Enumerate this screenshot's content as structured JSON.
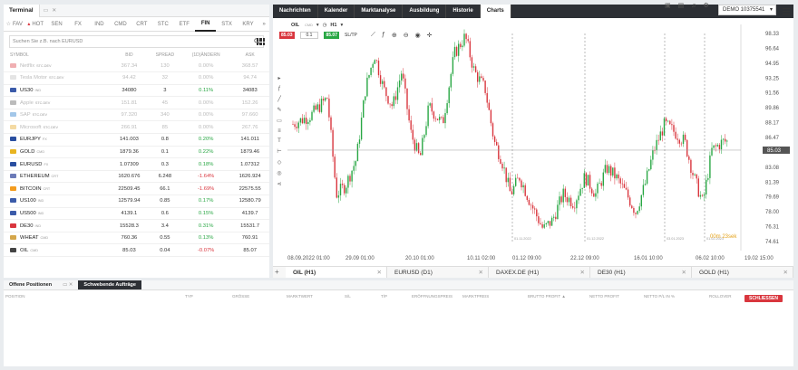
{
  "terminal": {
    "title": "Terminal",
    "categories": [
      {
        "label": "FAV",
        "icon": "star-icon"
      },
      {
        "label": "HOT",
        "icon": "fire-icon"
      },
      {
        "label": "SEN",
        "icon": ""
      },
      {
        "label": "FX",
        "icon": ""
      },
      {
        "label": "IND",
        "icon": ""
      },
      {
        "label": "CMD",
        "icon": ""
      },
      {
        "label": "CRT",
        "icon": ""
      },
      {
        "label": "STC",
        "icon": ""
      },
      {
        "label": "ETF",
        "icon": ""
      },
      {
        "label": "FIN",
        "icon": ""
      },
      {
        "label": "STX",
        "icon": ""
      },
      {
        "label": "KRY",
        "icon": ""
      }
    ],
    "more": "»",
    "search_placeholder": "Suchen Sie z.B. nach EURUSD",
    "columns": [
      "SYMBOL",
      "BID",
      "SPREAD",
      "(1D)ÄNDERN",
      "ASK"
    ],
    "rows": [
      {
        "symbol": "Netflix",
        "sub": "STC.DEV",
        "bid": "367.34",
        "spread": "130",
        "change": "0.00%",
        "ask": "368.57",
        "dim": true,
        "flag": "#d9363e"
      },
      {
        "symbol": "Tesla Motor",
        "sub": "STC.DEV",
        "bid": "94.42",
        "spread": "32",
        "change": "0.00%",
        "ask": "94.74",
        "dim": true,
        "flag": "#bbb"
      },
      {
        "symbol": "US30",
        "sub": "IND",
        "bid": "34080",
        "spread": "3",
        "change": "0.11%",
        "ask": "34083",
        "dim": false,
        "flag": "#3b5ba9"
      },
      {
        "symbol": "Apple",
        "sub": "STC.DEV",
        "bid": "151.81",
        "spread": "45",
        "change": "0.00%",
        "ask": "152.26",
        "dim": true,
        "flag": "#555"
      },
      {
        "symbol": "SAP",
        "sub": "STC.DEV",
        "bid": "97.320",
        "spread": "340",
        "change": "0.00%",
        "ask": "97.660",
        "dim": true,
        "flag": "#1a73c8"
      },
      {
        "symbol": "Microsoft",
        "sub": "STC.DEV",
        "bid": "266.91",
        "spread": "85",
        "change": "0.00%",
        "ask": "267.76",
        "dim": true,
        "flag": "#e4a21a"
      },
      {
        "symbol": "EURJPY",
        "sub": "FX",
        "bid": "141.003",
        "spread": "0.8",
        "change": "0.20%",
        "ask": "141.011",
        "dim": false,
        "flag": "#2a4fa0"
      },
      {
        "symbol": "GOLD",
        "sub": "CMD",
        "bid": "1879.36",
        "spread": "0.1",
        "change": "0.22%",
        "ask": "1879.46",
        "dim": false,
        "flag": "#e8b420"
      },
      {
        "symbol": "EURUSD",
        "sub": "FX",
        "bid": "1.07309",
        "spread": "0.3",
        "change": "0.18%",
        "ask": "1.07312",
        "dim": false,
        "flag": "#2a4fa0"
      },
      {
        "symbol": "ETHEREUM",
        "sub": "CRT",
        "bid": "1620.676",
        "spread": "6.248",
        "change": "-1.64%",
        "ask": "1626.924",
        "dim": false,
        "flag": "#6c7bb8"
      },
      {
        "symbol": "BITCOIN",
        "sub": "CRT",
        "bid": "22509.45",
        "spread": "66.1",
        "change": "-1.69%",
        "ask": "22575.55",
        "dim": false,
        "flag": "#f39c1f"
      },
      {
        "symbol": "US100",
        "sub": "IND",
        "bid": "12579.94",
        "spread": "0.85",
        "change": "0.17%",
        "ask": "12580.79",
        "dim": false,
        "flag": "#3b5ba9"
      },
      {
        "symbol": "US500",
        "sub": "IND",
        "bid": "4139.1",
        "spread": "0.6",
        "change": "0.15%",
        "ask": "4139.7",
        "dim": false,
        "flag": "#3b5ba9"
      },
      {
        "symbol": "DE30",
        "sub": "IND",
        "bid": "15528.3",
        "spread": "3.4",
        "change": "0.31%",
        "ask": "15531.7",
        "dim": false,
        "flag": "#d9363e"
      },
      {
        "symbol": "WHEAT",
        "sub": "CMD",
        "bid": "760.36",
        "spread": "0.55",
        "change": "0.13%",
        "ask": "760.91",
        "dim": false,
        "flag": "#d4a64a"
      },
      {
        "symbol": "OIL",
        "sub": "CMD",
        "bid": "85.03",
        "spread": "0.04",
        "change": "-0.07%",
        "ask": "85.07",
        "dim": false,
        "flag": "#444"
      }
    ]
  },
  "nav": [
    "Nachrichten",
    "Kalender",
    "Marktanalyse",
    "Ausbildung",
    "Historie",
    "Charts"
  ],
  "account": {
    "label": "DEMO",
    "number": "10375541"
  },
  "chart_toolbar": {
    "symbol": "OIL",
    "sub": "CMD",
    "timeframe": "H1",
    "sell_price": "85.03",
    "lot": "0.1",
    "buy_price": "85.07",
    "sltp": "SL/TP"
  },
  "chart_data": {
    "type": "candlestick",
    "symbol": "OIL",
    "timeframe": "H1",
    "y_ticks": [
      98.33,
      96.64,
      94.95,
      93.25,
      91.56,
      89.86,
      88.17,
      86.47,
      83.08,
      81.39,
      79.69,
      78.0,
      76.31,
      74.61
    ],
    "current_price": "85.03",
    "x_ticks": [
      "08.09.2022 01:00",
      "29.09 01:00",
      "20.10 01:00",
      "10.11 02:00",
      "01.12 09:00",
      "22.12 09:00",
      "16.01 10:00",
      "06.02 10:00",
      "19.02 15:00"
    ],
    "period_separators": [
      "01.11.2022",
      "01.12.2022",
      "03.01.2023",
      "01.02.2023"
    ],
    "countdown": "00m 23sek",
    "ylim": [
      74.61,
      98.33
    ]
  },
  "chart_tabs": [
    {
      "label": "OIL (H1)",
      "active": true
    },
    {
      "label": "EURUSD (D1)",
      "active": false
    },
    {
      "label": "DAXEX.DE (H1)",
      "active": false
    },
    {
      "label": "DE30 (H1)",
      "active": false
    },
    {
      "label": "GOLD (H1)",
      "active": false
    }
  ],
  "positions": {
    "tab_open": "Offene Positionen",
    "tab_pending": "Schwebende Aufträge",
    "columns": [
      "POSITION",
      "TYP",
      "GRÖSSE",
      "MARKTWERT",
      "S/L",
      "T/P",
      "ERÖFFNUNGSPREIS",
      "MARKTPREIS",
      "BRUTTO PROFIT ▲",
      "NETTO PROFIT",
      "NETTO P/L IN %",
      "ROLLOVER"
    ],
    "close_all": "SCHLIESSEN"
  },
  "colors": {
    "up": "#29a744",
    "down": "#d9363e",
    "nav": "#2d3035"
  }
}
